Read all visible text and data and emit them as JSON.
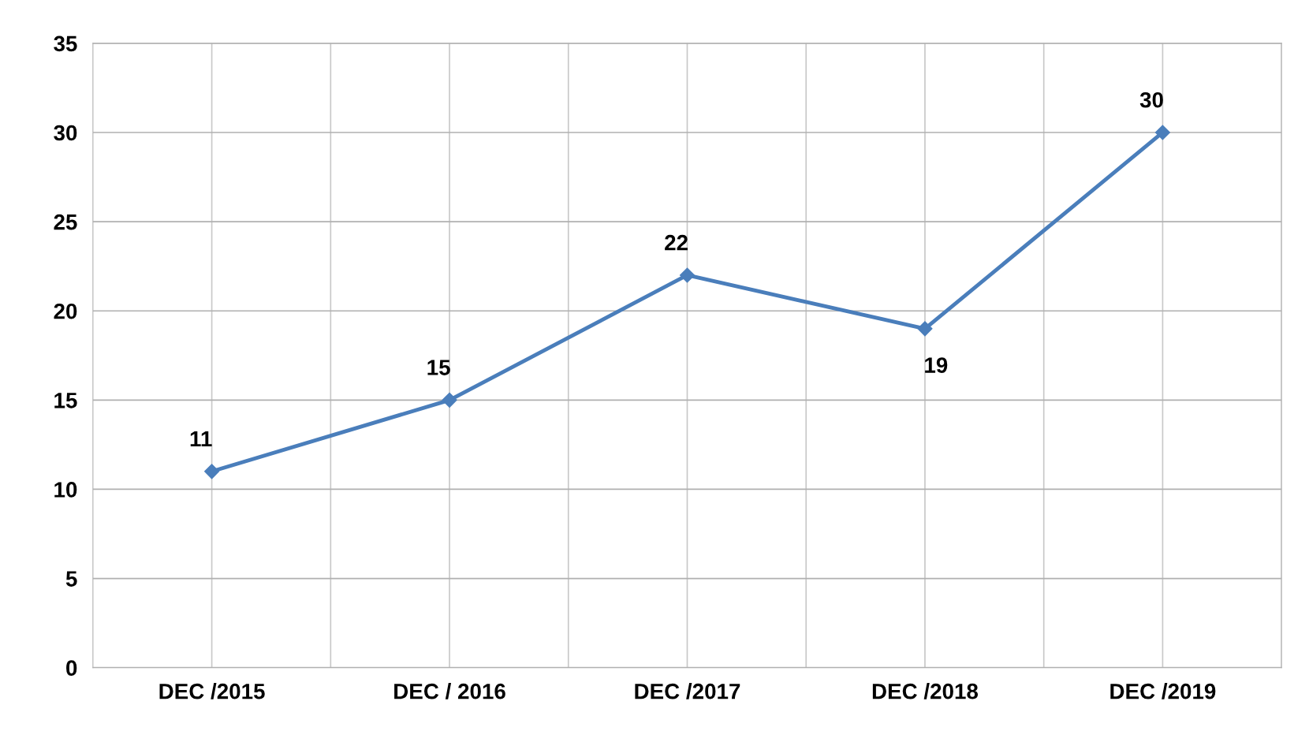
{
  "chart_data": {
    "type": "line",
    "categories": [
      "DEC /2015",
      "DEC / 2016",
      "DEC /2017",
      "DEC /2018",
      "DEC /2019"
    ],
    "series": [
      {
        "color": "#4a7ebb",
        "values": [
          11,
          15,
          22,
          19,
          30
        ]
      }
    ],
    "ylim": [
      0,
      35
    ],
    "yticks": [
      0,
      5,
      10,
      15,
      20,
      25,
      30,
      35
    ],
    "grid": true,
    "marker": "diamond",
    "line_style": "solid",
    "data_labels": true,
    "legend": false
  }
}
